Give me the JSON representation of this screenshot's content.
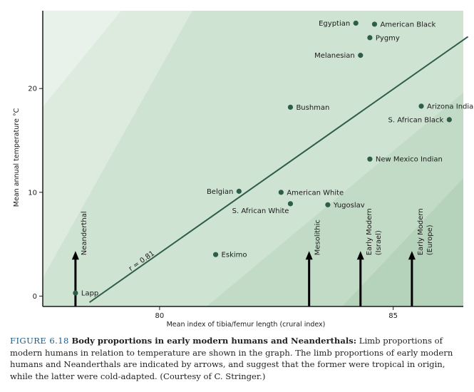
{
  "chart_data": {
    "type": "scatter",
    "xlabel": "Mean index of tibia/femur length (crural index)",
    "ylabel": "Mean annual temperature °C",
    "xlim": [
      77.5,
      86.5
    ],
    "ylim": [
      -1,
      27.5
    ],
    "x_ticks": [
      80,
      85
    ],
    "x_tick_labels": [
      "80",
      "85"
    ],
    "y_ticks": [
      0,
      10,
      20
    ],
    "y_tick_labels": [
      "0",
      "10",
      "20"
    ],
    "grid": false,
    "points": [
      {
        "label": "Egyptian",
        "x": 84.2,
        "y": 26.3,
        "label_side": "left"
      },
      {
        "label": "American Black",
        "x": 84.6,
        "y": 26.2,
        "label_side": "right"
      },
      {
        "label": "Pygmy",
        "x": 84.5,
        "y": 24.9,
        "label_side": "right"
      },
      {
        "label": "Melanesian",
        "x": 84.3,
        "y": 23.2,
        "label_side": "left"
      },
      {
        "label": "Bushman",
        "x": 82.8,
        "y": 18.2,
        "label_side": "right"
      },
      {
        "label": "Arizona Indian",
        "x": 85.6,
        "y": 18.3,
        "label_side": "right"
      },
      {
        "label": "S. African Black",
        "x": 86.2,
        "y": 17.0,
        "label_side": "left"
      },
      {
        "label": "New Mexico Indian",
        "x": 84.5,
        "y": 13.2,
        "label_side": "right"
      },
      {
        "label": "Belgian",
        "x": 81.7,
        "y": 10.1,
        "label_side": "left"
      },
      {
        "label": "American White",
        "x": 82.6,
        "y": 10.0,
        "label_side": "right"
      },
      {
        "label": "S. African White",
        "x": 82.8,
        "y": 8.9,
        "label_side": "left-below"
      },
      {
        "label": "Yugoslav",
        "x": 83.6,
        "y": 8.8,
        "label_side": "right"
      },
      {
        "label": "Eskimo",
        "x": 81.2,
        "y": 4.0,
        "label_side": "right"
      },
      {
        "label": "Lapp",
        "x": 78.2,
        "y": 0.3,
        "label_side": "right"
      }
    ],
    "regression": {
      "label": "r = 0.81",
      "x": [
        78.5,
        86.6
      ],
      "y": [
        -0.6,
        25.0
      ]
    },
    "arrows": [
      {
        "label": "Neanderthal",
        "x": 78.2,
        "y_top": 4.2
      },
      {
        "label": "Mesolithic",
        "x": 83.2,
        "y_top": 4.2
      },
      {
        "label": "Early Modern",
        "x": 84.3,
        "y_top": 4.2,
        "sublabel": "(Israel)"
      },
      {
        "label": "Early Modern",
        "x": 85.4,
        "y_top": 4.2,
        "sublabel": "(Europe)"
      }
    ],
    "colors": {
      "band_lightest": "#e9f2ea",
      "band_light": "#dcebdd",
      "band_mid": "#cfe3d2",
      "band_dark": "#c2dbc6",
      "band_darker": "#b5d3ba",
      "regression_line": "#2e5e4a",
      "point": "#2e5e4a",
      "axis": "#1b1b1b",
      "arrow": "#000000"
    }
  },
  "caption": {
    "figure_label": "FIGURE 6.18",
    "title": "Body proportions in early modern humans and Neanderthals:",
    "text": "Limb proportions of modern humans in relation to temperature are shown in the graph. The limb proportions of early modern humans and Neanderthals are indicated by arrows, and suggest that the former were tropical in origin, while the latter were cold-adapted. (Courtesy of C. Stringer.)"
  }
}
